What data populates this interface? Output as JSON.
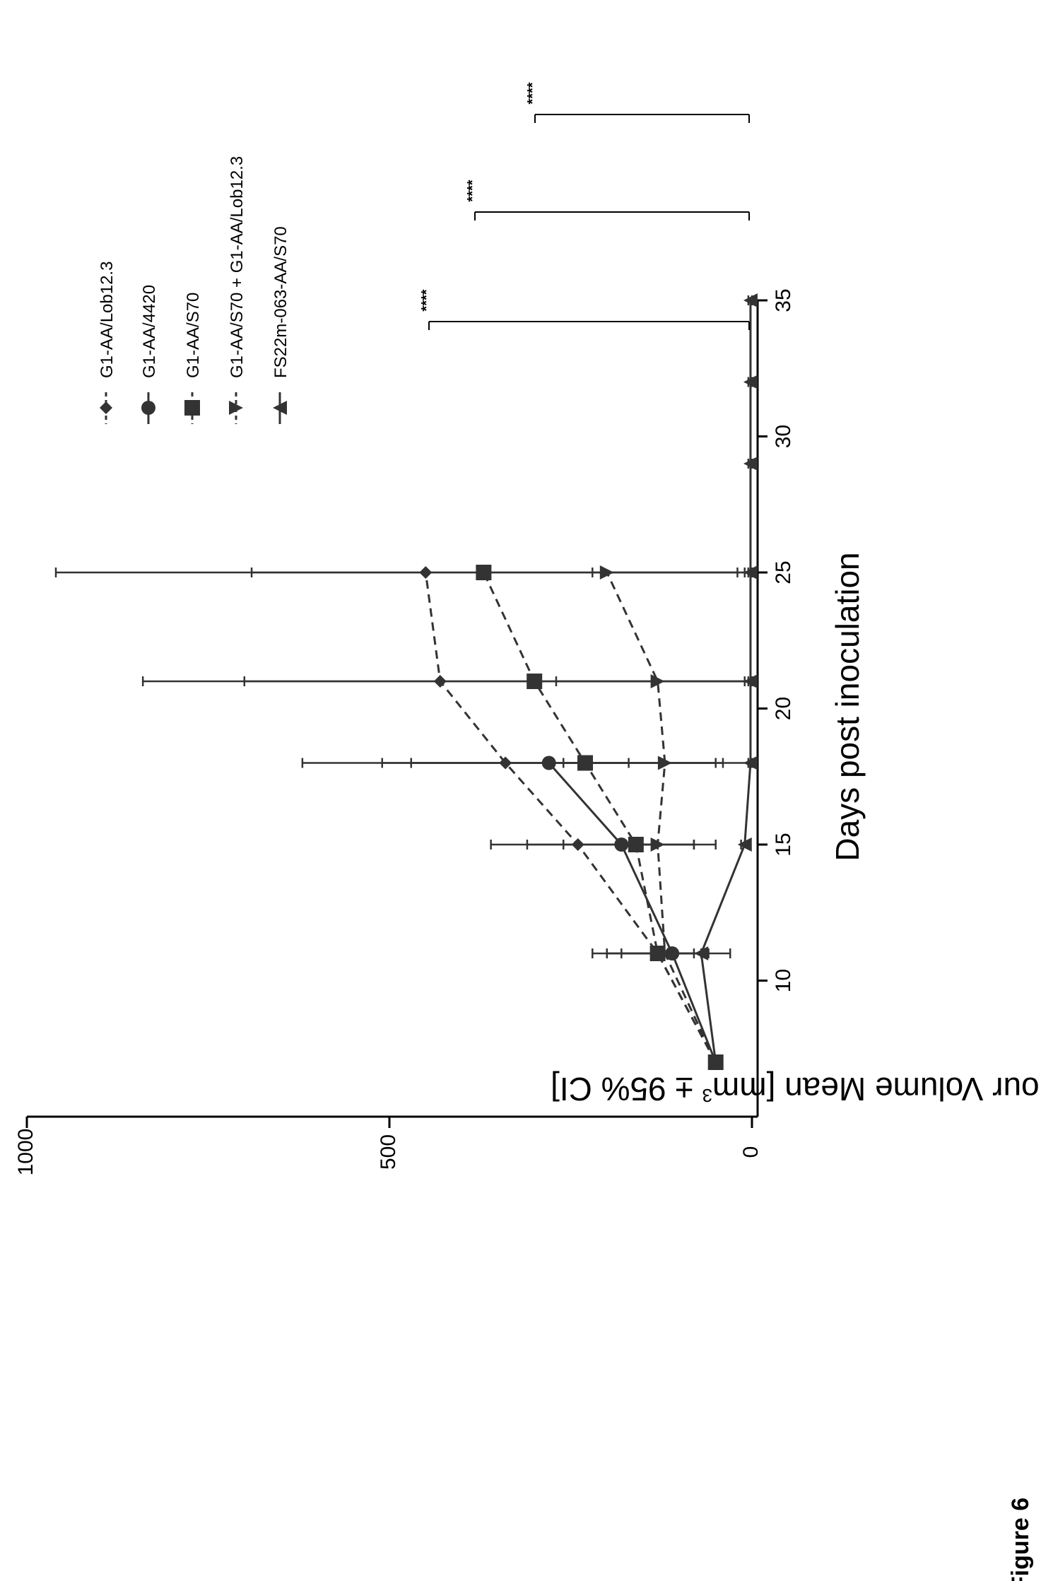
{
  "figure_label": "Figure 6",
  "chart_data": {
    "type": "line",
    "orientation": "rotated-90-ccw",
    "xlabel": "Days post inoculation",
    "ylabel_prefix": "Tumour Volume Mean [mm",
    "ylabel_sup": "3",
    "ylabel_suffix": " ± 95% CI]",
    "xlim": [
      5,
      35
    ],
    "ylim": [
      0,
      1000
    ],
    "x_ticks": [
      10,
      15,
      20,
      25,
      30,
      35
    ],
    "y_ticks": [
      0,
      500,
      1000
    ],
    "series": [
      {
        "name": "G1-AA/Lob12.3",
        "marker": "diamond",
        "dash": true,
        "color": "#333333",
        "x": [
          7,
          11,
          15,
          18,
          21,
          25
        ],
        "y": [
          50,
          130,
          240,
          340,
          430,
          450
        ],
        "ci_low": [
          50,
          60,
          130,
          170,
          0,
          0
        ],
        "ci_high": [
          50,
          220,
          360,
          510,
          700,
          960
        ]
      },
      {
        "name": "G1-AA/4420",
        "marker": "circle",
        "dash": false,
        "color": "#333333",
        "x": [
          7,
          11,
          15,
          18
        ],
        "y": [
          50,
          110,
          180,
          280
        ],
        "ci_low": [
          50,
          60,
          50,
          0
        ],
        "ci_high": [
          50,
          200,
          310,
          620
        ]
      },
      {
        "name": "G1-AA/S70",
        "marker": "square",
        "dash": true,
        "color": "#333333",
        "x": [
          7,
          11,
          15,
          18,
          21,
          25
        ],
        "y": [
          50,
          130,
          160,
          230,
          300,
          370
        ],
        "ci_low": [
          50,
          80,
          80,
          50,
          10,
          20
        ],
        "ci_high": [
          50,
          200,
          260,
          470,
          840,
          690
        ]
      },
      {
        "name": "G1-AA/S70 + G1-AA/Lob12.3",
        "marker": "triangle-down",
        "dash": true,
        "color": "#333333",
        "x": [
          7,
          11,
          15,
          18,
          21,
          25
        ],
        "y": [
          50,
          120,
          130,
          120,
          130,
          200
        ],
        "ci_low": [
          50,
          70,
          80,
          40,
          10,
          10
        ],
        "ci_high": [
          50,
          180,
          180,
          260,
          270,
          220
        ]
      },
      {
        "name": "FS22m-063-AA/S70",
        "marker": "triangle-up",
        "dash": false,
        "color": "#333333",
        "x": [
          7,
          11,
          15,
          18,
          21,
          25,
          29,
          32,
          35
        ],
        "y": [
          50,
          70,
          10,
          2,
          2,
          2,
          2,
          2,
          2
        ],
        "ci_low": [
          50,
          30,
          5,
          0,
          0,
          0,
          0,
          0,
          0
        ],
        "ci_high": [
          50,
          110,
          15,
          5,
          5,
          5,
          5,
          5,
          5
        ]
      }
    ],
    "significance": [
      {
        "label": "****",
        "from": 35,
        "to_series": "G1-AA/4420",
        "level": 440
      },
      {
        "label": "****",
        "from": 35,
        "to_series": "G1-AA/S70",
        "level": 370
      },
      {
        "label": "****",
        "from": 35,
        "to_series": "G1-AA/S70 + G1-AA/Lob12.3",
        "level": 300
      }
    ]
  }
}
